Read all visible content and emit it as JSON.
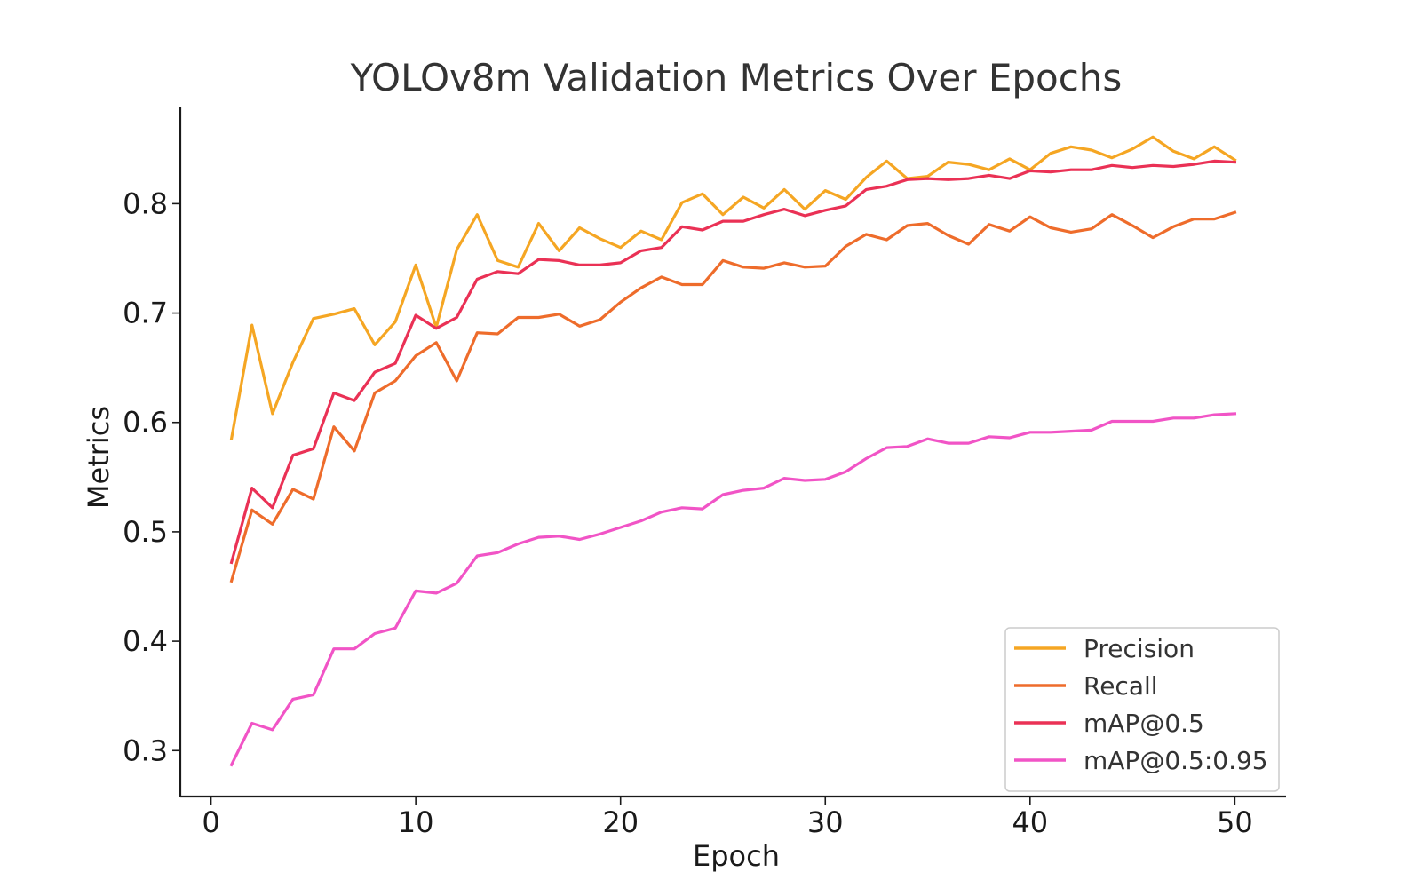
{
  "chart_data": {
    "type": "line",
    "title": "YOLOv8m Validation Metrics Over Epochs",
    "xlabel": "Epoch",
    "ylabel": "Metrics",
    "xlim": [
      -1.5,
      52.5
    ],
    "ylim": [
      0.258,
      0.888
    ],
    "xticks": [
      0,
      10,
      20,
      30,
      40,
      50
    ],
    "yticks": [
      0.3,
      0.4,
      0.5,
      0.6,
      0.7,
      0.8
    ],
    "grid": false,
    "legend_position": "bottom-right",
    "x": [
      1,
      2,
      3,
      4,
      5,
      6,
      7,
      8,
      9,
      10,
      11,
      12,
      13,
      14,
      15,
      16,
      17,
      18,
      19,
      20,
      21,
      22,
      23,
      24,
      25,
      26,
      27,
      28,
      29,
      30,
      31,
      32,
      33,
      34,
      35,
      36,
      37,
      38,
      39,
      40,
      41,
      42,
      43,
      44,
      45,
      46,
      47,
      48,
      49,
      50
    ],
    "series": [
      {
        "name": "Precision",
        "color": "#f5a623",
        "values": [
          0.585,
          0.689,
          0.608,
          0.655,
          0.695,
          0.699,
          0.704,
          0.671,
          0.692,
          0.744,
          0.687,
          0.758,
          0.79,
          0.748,
          0.742,
          0.782,
          0.757,
          0.778,
          0.768,
          0.76,
          0.775,
          0.767,
          0.801,
          0.809,
          0.79,
          0.806,
          0.796,
          0.813,
          0.795,
          0.812,
          0.804,
          0.824,
          0.839,
          0.823,
          0.825,
          0.838,
          0.836,
          0.831,
          0.841,
          0.831,
          0.846,
          0.852,
          0.849,
          0.842,
          0.85,
          0.861,
          0.848,
          0.841,
          0.852,
          0.84
        ]
      },
      {
        "name": "Recall",
        "color": "#ee6c2b",
        "values": [
          0.455,
          0.52,
          0.507,
          0.539,
          0.53,
          0.596,
          0.574,
          0.627,
          0.638,
          0.661,
          0.673,
          0.638,
          0.682,
          0.681,
          0.696,
          0.696,
          0.699,
          0.688,
          0.694,
          0.71,
          0.723,
          0.733,
          0.726,
          0.726,
          0.748,
          0.742,
          0.741,
          0.746,
          0.742,
          0.743,
          0.761,
          0.772,
          0.767,
          0.78,
          0.782,
          0.771,
          0.763,
          0.781,
          0.775,
          0.788,
          0.778,
          0.774,
          0.777,
          0.79,
          0.78,
          0.769,
          0.779,
          0.786,
          0.786,
          0.792
        ]
      },
      {
        "name": "mAP@0.5",
        "color": "#ea3155",
        "values": [
          0.472,
          0.54,
          0.522,
          0.57,
          0.576,
          0.627,
          0.62,
          0.646,
          0.654,
          0.698,
          0.686,
          0.696,
          0.731,
          0.738,
          0.736,
          0.749,
          0.748,
          0.744,
          0.744,
          0.746,
          0.757,
          0.76,
          0.779,
          0.776,
          0.784,
          0.784,
          0.79,
          0.795,
          0.789,
          0.794,
          0.798,
          0.813,
          0.816,
          0.822,
          0.823,
          0.822,
          0.823,
          0.826,
          0.823,
          0.83,
          0.829,
          0.831,
          0.831,
          0.835,
          0.833,
          0.835,
          0.834,
          0.836,
          0.839,
          0.838
        ]
      },
      {
        "name": "mAP@0.5:0.95",
        "color": "#f154c6",
        "values": [
          0.287,
          0.325,
          0.319,
          0.347,
          0.351,
          0.393,
          0.393,
          0.407,
          0.412,
          0.446,
          0.444,
          0.453,
          0.478,
          0.481,
          0.489,
          0.495,
          0.496,
          0.493,
          0.498,
          0.504,
          0.51,
          0.518,
          0.522,
          0.521,
          0.534,
          0.538,
          0.54,
          0.549,
          0.547,
          0.548,
          0.555,
          0.567,
          0.577,
          0.578,
          0.585,
          0.581,
          0.581,
          0.587,
          0.586,
          0.591,
          0.591,
          0.592,
          0.593,
          0.601,
          0.601,
          0.601,
          0.604,
          0.604,
          0.607,
          0.608
        ]
      }
    ]
  }
}
